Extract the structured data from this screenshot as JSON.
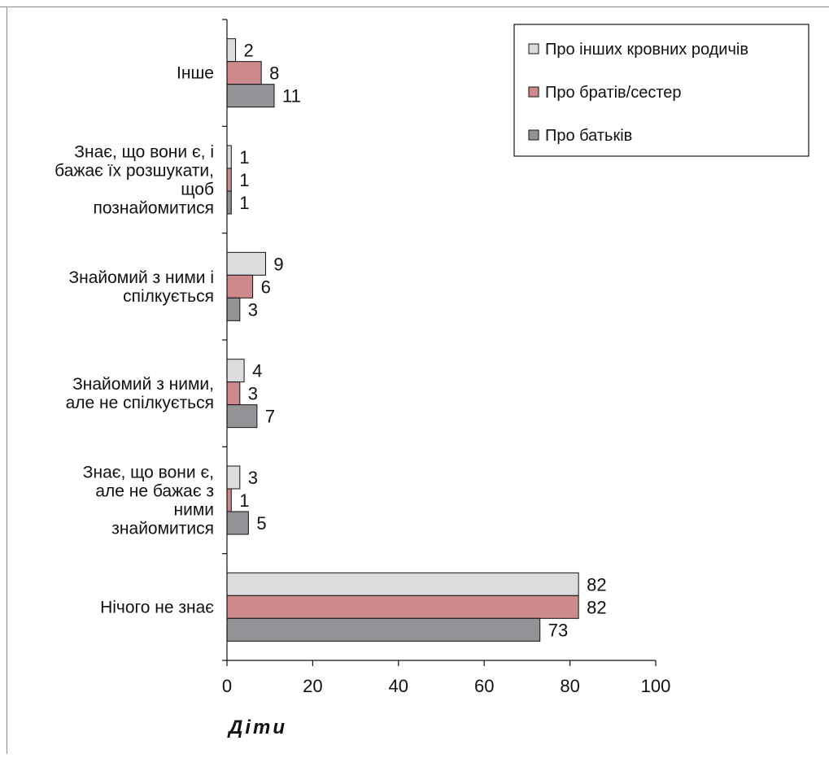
{
  "chart_data": {
    "type": "bar",
    "orientation": "horizontal",
    "categories": [
      "Інше",
      "Знає, що вони є, і бажає їх розшукати, щоб познайомитися",
      "Знайомий з ними і спілкується",
      "Знайомий з ними, але не спілкується",
      "Знає, що вони є, але не бажає з ними знайомитися",
      "Нічого не знає"
    ],
    "category_lines": [
      [
        "Інше"
      ],
      [
        "Знає, що вони є, і",
        "бажає їх розшукати,",
        "щоб",
        "познайомитися"
      ],
      [
        "Знайомий з ними і",
        "спілкується"
      ],
      [
        "Знайомий з ними,",
        "але не спілкується"
      ],
      [
        "Знає, що вони є,",
        "але не бажає з",
        "ними",
        "знайомитися"
      ],
      [
        "Нічого не знає"
      ]
    ],
    "series": [
      {
        "name": "Про інших кровних родичів",
        "color": "#dcdcde",
        "values": [
          2,
          1,
          9,
          4,
          3,
          82
        ]
      },
      {
        "name": "Про братів/сестер",
        "color": "#cc8a8c",
        "values": [
          8,
          1,
          6,
          3,
          1,
          82
        ]
      },
      {
        "name": "Про батьків",
        "color": "#939397",
        "values": [
          11,
          1,
          3,
          7,
          5,
          73
        ]
      }
    ],
    "xlim": [
      0,
      100
    ],
    "xticks": [
      "0",
      "20",
      "40",
      "60",
      "80",
      "100"
    ],
    "xlabel": "Діти",
    "ylabel": "",
    "title": "",
    "legend_position": "top-right",
    "grid": false
  }
}
